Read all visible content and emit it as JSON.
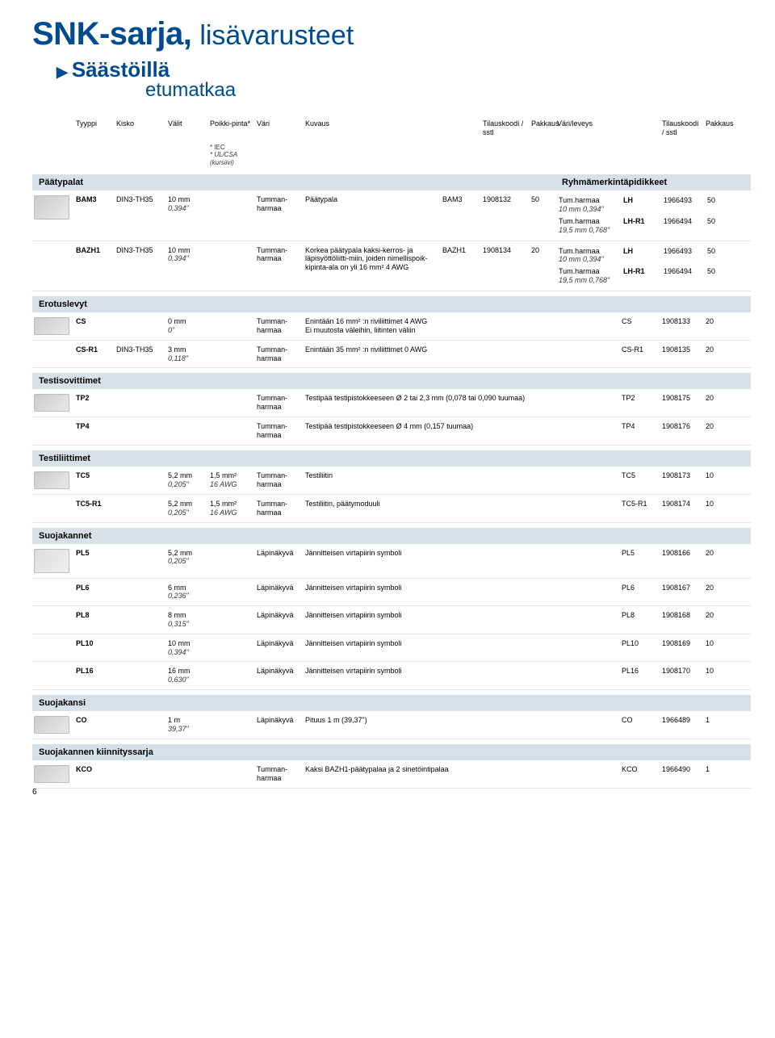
{
  "title": {
    "main": "SNK-sarja,",
    "sub": "lisävarusteet"
  },
  "subtitle": {
    "line1": "Säästöillä",
    "line2": "etumatkaa"
  },
  "columns": {
    "c1": "Tyyppi",
    "c2": "Kisko",
    "c3": "Välit",
    "c4": "Poikki-pinta*",
    "c5": "Väri",
    "c6": "Kuvaus",
    "c7": "Tilauskoodi / sstl",
    "c8": "Pakkaus",
    "c9": "Väri/leveys",
    "c10": "Tilauskoodi / sstl",
    "c11": "Pakkaus",
    "iec": "* IEC",
    "ul": "* UL/CSA (kursiivi)"
  },
  "sections": {
    "paatypalat": {
      "title": "Päätypalat",
      "right": "Ryhmämerkintäpidikkeet"
    },
    "erotuslevyt": {
      "title": "Erotuslevyt"
    },
    "testisovittimet": {
      "title": "Testisovittimet"
    },
    "testiliittimet": {
      "title": "Testiliittimet"
    },
    "suojakannet": {
      "title": "Suojakannet"
    },
    "suojakansi": {
      "title": "Suojakansi"
    },
    "kiinnitys": {
      "title": "Suojakannen kiinnityssarja"
    }
  },
  "paatypalat": [
    {
      "tyyppi": "BAM3",
      "kisko": "DIN3-TH35",
      "valit": "10 mm",
      "valit2": "0,394\"",
      "vari": "Tumman-harmaa",
      "kuvaus": "Päätypala",
      "code": "BAM3",
      "num": "1908132",
      "pak": "50",
      "subs": [
        {
          "vl": "Tum.harmaa",
          "vl2": "10 mm 0,394\"",
          "c": "LH",
          "n": "1966493",
          "p": "50"
        },
        {
          "vl": "Tum.harmaa",
          "vl2": "19,5 mm 0,768\"",
          "c": "LH-R1",
          "n": "1966494",
          "p": "50"
        }
      ]
    },
    {
      "tyyppi": "BAZH1",
      "kisko": "DIN3-TH35",
      "valit": "10 mm",
      "valit2": "0,394\"",
      "vari": "Tumman-harmaa",
      "kuvaus": "Korkea päätypala kaksi-kerros- ja läpisyöttöliitti-miin, joiden nimellispoik-kipinta-ala on yli 16 mm² 4 AWG",
      "code": "BAZH1",
      "num": "1908134",
      "pak": "20",
      "subs": [
        {
          "vl": "Tum.harmaa",
          "vl2": "10 mm 0,394\"",
          "c": "LH",
          "n": "1966493",
          "p": "50"
        },
        {
          "vl": "Tum.harmaa",
          "vl2": "19,5 mm 0,768\"",
          "c": "LH-R1",
          "n": "1966494",
          "p": "50"
        }
      ]
    }
  ],
  "erotuslevyt": [
    {
      "tyyppi": "CS",
      "valit": "0 mm",
      "valit2": "0\"",
      "vari": "Tumman-harmaa",
      "kuvaus": "Enintään 16 mm² :n riviliittimet 4 AWG\nEi muutosta väleihin, liitinten väliin",
      "code": "CS",
      "num": "1908133",
      "pak": "20"
    },
    {
      "tyyppi": "CS-R1",
      "kisko": "DIN3-TH35",
      "valit": "3 mm",
      "valit2": "0,118\"",
      "vari": "Tumman-harmaa",
      "kuvaus": "Enintään 35 mm² :n riviliittimet 0 AWG",
      "code": "CS-R1",
      "num": "1908135",
      "pak": "20"
    }
  ],
  "testisovittimet": [
    {
      "tyyppi": "TP2",
      "vari": "Tumman-harmaa",
      "kuvaus": "Testipää testipistokkeeseen Ø 2 tai 2,3 mm (0,078 tai 0,090 tuumaa)",
      "code": "TP2",
      "num": "1908175",
      "pak": "20"
    },
    {
      "tyyppi": "TP4",
      "vari": "Tumman-harmaa",
      "kuvaus": "Testipää testipistokkeeseen Ø 4 mm (0,157 tuumaa)",
      "code": "TP4",
      "num": "1908176",
      "pak": "20"
    }
  ],
  "testiliittimet": [
    {
      "tyyppi": "TC5",
      "valit": "5,2 mm",
      "valit2": "0,205\"",
      "pinta": "1,5 mm²",
      "pinta2": "16 AWG",
      "vari": "Tumman-harmaa",
      "kuvaus": "Testiliitin",
      "code": "TC5",
      "num": "1908173",
      "pak": "10"
    },
    {
      "tyyppi": "TC5-R1",
      "valit": "5,2 mm",
      "valit2": "0,205\"",
      "pinta": "1,5 mm²",
      "pinta2": "16 AWG",
      "vari": "Tumman-harmaa",
      "kuvaus": "Testiliitin, päätymoduuli",
      "code": "TC5-R1",
      "num": "1908174",
      "pak": "10"
    }
  ],
  "suojakannet": [
    {
      "tyyppi": "PL5",
      "valit": "5,2 mm",
      "valit2": "0,205\"",
      "vari": "Läpinäkyvä",
      "kuvaus": "Jännitteisen virtapiirin symboli",
      "code": "PL5",
      "num": "1908166",
      "pak": "20"
    },
    {
      "tyyppi": "PL6",
      "valit": "6 mm",
      "valit2": "0,236\"",
      "vari": "Läpinäkyvä",
      "kuvaus": "Jännitteisen virtapiirin symboli",
      "code": "PL6",
      "num": "1908167",
      "pak": "20"
    },
    {
      "tyyppi": "PL8",
      "valit": "8 mm",
      "valit2": "0,315\"",
      "vari": "Läpinäkyvä",
      "kuvaus": "Jännitteisen virtapiirin symboli",
      "code": "PL8",
      "num": "1908168",
      "pak": "20"
    },
    {
      "tyyppi": "PL10",
      "valit": "10 mm",
      "valit2": "0,394\"",
      "vari": "Läpinäkyvä",
      "kuvaus": "Jännitteisen virtapiirin symboli",
      "code": "PL10",
      "num": "1908169",
      "pak": "10"
    },
    {
      "tyyppi": "PL16",
      "valit": "16 mm",
      "valit2": "0,630\"",
      "vari": "Läpinäkyvä",
      "kuvaus": "Jännitteisen virtapiirin symboli",
      "code": "PL16",
      "num": "1908170",
      "pak": "10"
    }
  ],
  "suojakansi": [
    {
      "tyyppi": "CO",
      "valit": "1 m",
      "valit2": "39,37\"",
      "vari": "Läpinäkyvä",
      "kuvaus": "Pituus 1 m (39,37\")",
      "code": "CO",
      "num": "1966489",
      "pak": "1"
    }
  ],
  "kiinnitys": [
    {
      "tyyppi": "KCO",
      "vari": "Tumman-harmaa",
      "kuvaus": "Kaksi BAZH1-päätypalaa ja 2 sinetöintipalaa",
      "code": "KCO",
      "num": "1966490",
      "pak": "1"
    }
  ],
  "pageNum": "6"
}
